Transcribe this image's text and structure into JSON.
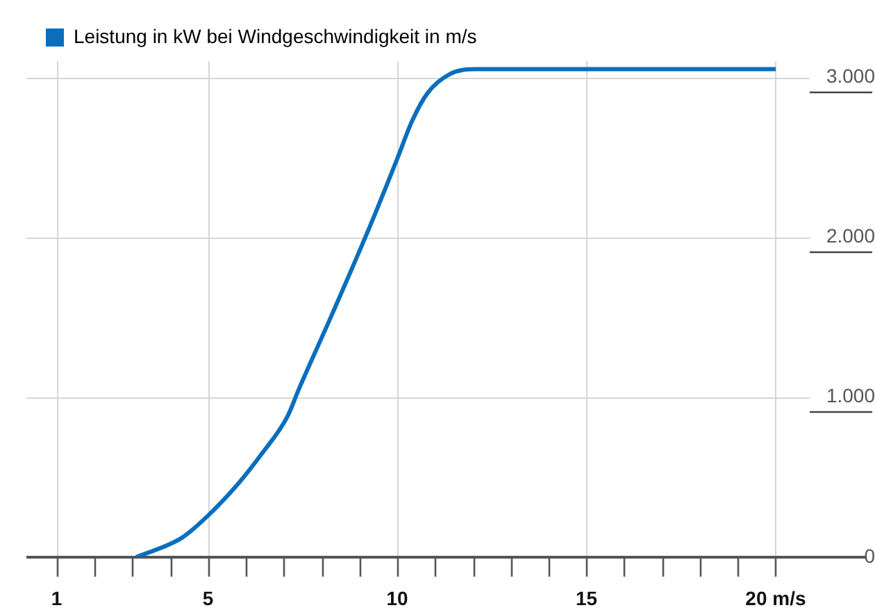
{
  "chart_data": {
    "type": "line",
    "legend": "top left",
    "grid": true,
    "marker": "none",
    "line_style": "solid",
    "xlim": [
      0.2,
      20.9
    ],
    "xticks": [
      1,
      {
        "value": 2,
        "label": null
      },
      {
        "value": 3,
        "label": null
      },
      {
        "value": 4,
        "label": null
      },
      5,
      {
        "value": 6,
        "label": null
      },
      {
        "value": 7,
        "label": null
      },
      {
        "value": 8,
        "label": null
      },
      {
        "value": 9,
        "label": null
      },
      10,
      {
        "value": 11,
        "label": null
      },
      {
        "value": 12,
        "label": null
      },
      {
        "value": 13,
        "label": null
      },
      {
        "value": 14,
        "label": null
      },
      15,
      {
        "value": 16,
        "label": null
      },
      {
        "value": 17,
        "label": null
      },
      {
        "value": 18,
        "label": null
      },
      {
        "value": 19,
        "label": null
      },
      {
        "value": 20,
        "label": "20 m/s"
      }
    ],
    "ylim": [
      0,
      3100
    ],
    "yticks": [
      {
        "value": 0,
        "label": "0"
      },
      {
        "value": 1000,
        "label": "1.000"
      },
      {
        "value": 2000,
        "label": "2.000"
      },
      {
        "value": 3000,
        "label": "3.000"
      }
    ],
    "series": [
      {
        "name": "Leistung in kW bei Windgeschwindigkeit in m/s",
        "color": "#0a6ebd",
        "x": [
          3.1,
          4.3,
          5,
          5.8,
          6.4,
          7.1,
          7.4,
          8.3,
          9.3,
          10,
          10.4,
          10.8,
          11.4,
          12.1,
          20
        ],
        "values": [
          0,
          120,
          260,
          460,
          640,
          880,
          1050,
          1530,
          2080,
          2490,
          2730,
          2900,
          3020,
          3050,
          3050
        ]
      }
    ]
  }
}
